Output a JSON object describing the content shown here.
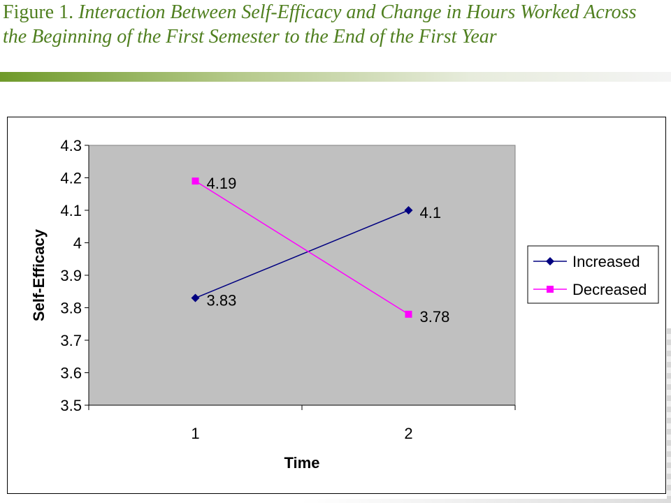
{
  "title": {
    "prefix": "Figure 1. ",
    "italic": "Interaction Between Self-Efficacy and Change in Hours Worked Across the Beginning of the First Semester to the End of the First Year"
  },
  "colors": {
    "title": "#4f7f1f",
    "plot_background": "#c0c0c0",
    "increased": "#000080",
    "decreased": "#ff00ff"
  },
  "chart_data": {
    "type": "line",
    "categories": [
      "1",
      "2"
    ],
    "series": [
      {
        "name": "Increased",
        "values": [
          3.83,
          4.1
        ],
        "marker": "diamond",
        "color": "#000080",
        "labels": [
          "3.83",
          "4.1"
        ]
      },
      {
        "name": "Decreased",
        "values": [
          4.19,
          3.78
        ],
        "marker": "square",
        "color": "#ff00ff",
        "labels": [
          "4.19",
          "3.78"
        ]
      }
    ],
    "xlabel": "Time",
    "ylabel": "Self-Efficacy",
    "ylim": [
      3.5,
      4.3
    ],
    "yticks": [
      "3.5",
      "3.6",
      "3.7",
      "3.8",
      "3.9",
      "4",
      "4.1",
      "4.2",
      "4.3"
    ],
    "grid": false,
    "legend_position": "right"
  }
}
